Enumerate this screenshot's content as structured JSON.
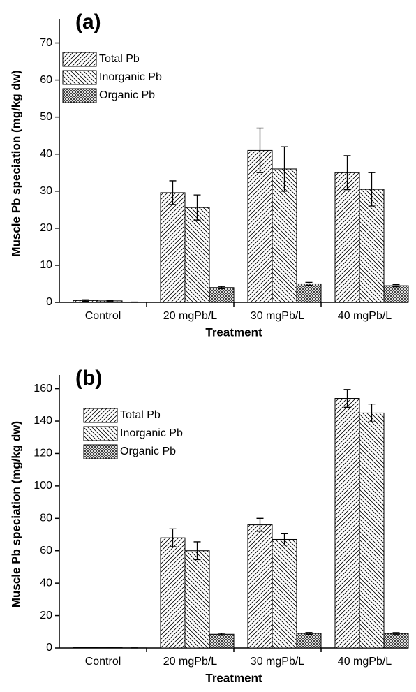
{
  "chart_data": [
    {
      "type": "bar",
      "title": "(a)",
      "x_label": "Treatment",
      "y_label": "Muscle Pb speciation (mg/kg dw)",
      "categories": [
        "Control",
        "20 mgPb/L",
        "30 mgPb/L",
        "40 mgPb/L"
      ],
      "series": [
        {
          "name": "Total Pb",
          "color": "#000000",
          "hatch": "forward",
          "values": [
            0.5,
            29.6,
            41,
            35
          ],
          "errors": [
            0.2,
            3.2,
            6,
            4.6
          ]
        },
        {
          "name": "Inorganic Pb",
          "color": "#000000",
          "hatch": "backward",
          "values": [
            0.4,
            25.6,
            36,
            30.5
          ],
          "errors": [
            0.2,
            3.4,
            6,
            4.5
          ]
        },
        {
          "name": "Organic Pb",
          "color": "#000000",
          "hatch": "cross",
          "values": [
            0.05,
            4,
            5,
            4.5
          ],
          "errors": [
            0.05,
            0.3,
            0.4,
            0.3
          ]
        }
      ],
      "ylim": [
        0,
        75
      ],
      "yticks": [
        0,
        10,
        20,
        30,
        40,
        50,
        60,
        70
      ],
      "legend": "upper-left"
    },
    {
      "type": "bar",
      "title": "(b)",
      "x_label": "Treatment",
      "y_label": "Muscle Pb speciation (mg/kg dw)",
      "categories": [
        "Control",
        "20 mgPb/L",
        "30 mgPb/L",
        "40 mgPb/L"
      ],
      "series": [
        {
          "name": "Total Pb",
          "color": "#000000",
          "hatch": "forward",
          "values": [
            0.3,
            68,
            76,
            154
          ],
          "errors": [
            0.1,
            5.5,
            4,
            5.5
          ]
        },
        {
          "name": "Inorganic Pb",
          "color": "#000000",
          "hatch": "backward",
          "values": [
            0.2,
            60,
            67,
            145
          ],
          "errors": [
            0.1,
            5.5,
            3.5,
            5.5
          ]
        },
        {
          "name": "Organic Pb",
          "color": "#000000",
          "hatch": "cross",
          "values": [
            0.05,
            8.5,
            9,
            9
          ],
          "errors": [
            0.03,
            0.6,
            0.6,
            0.5
          ]
        }
      ],
      "ylim": [
        0,
        165
      ],
      "yticks": [
        0,
        20,
        40,
        60,
        80,
        100,
        120,
        140,
        160
      ],
      "legend": "upper-left"
    }
  ]
}
